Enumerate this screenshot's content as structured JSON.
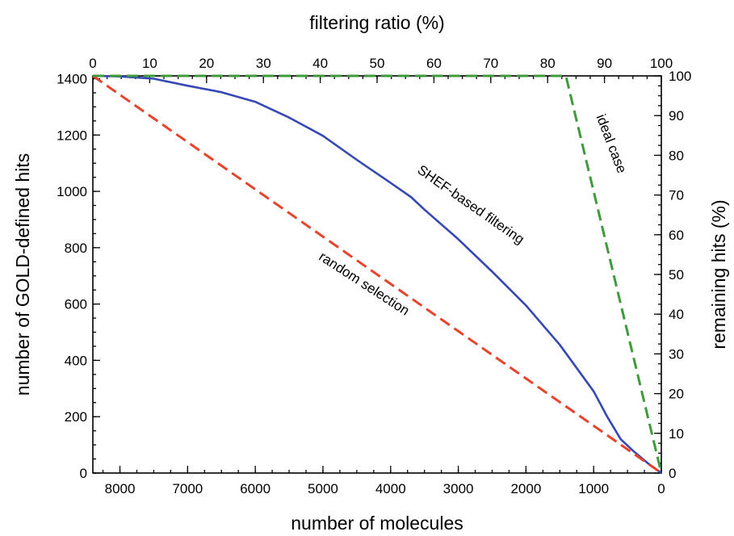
{
  "chart_data": {
    "type": "line",
    "title": "",
    "x_bottom": {
      "label": "number of molecules",
      "range": [
        8400,
        0
      ],
      "ticks": [
        8000,
        7000,
        6000,
        5000,
        4000,
        3000,
        2000,
        1000,
        0
      ]
    },
    "x_top": {
      "label": "filtering ratio (%)",
      "range": [
        0,
        100
      ],
      "ticks": [
        0,
        10,
        20,
        30,
        40,
        50,
        60,
        70,
        80,
        90,
        100
      ]
    },
    "y_left": {
      "label": "number of GOLD-defined hits",
      "range": [
        0,
        1410
      ],
      "ticks": [
        0,
        200,
        400,
        600,
        800,
        1000,
        1200,
        1400
      ]
    },
    "y_right": {
      "label": "remaining hits (%)",
      "range": [
        0,
        100
      ],
      "ticks": [
        0,
        10,
        20,
        30,
        40,
        50,
        60,
        70,
        80,
        90,
        100
      ]
    },
    "series": [
      {
        "name": "SHEF-based filtering",
        "color": "#3548b5",
        "style": "solid",
        "x": [
          8400,
          8000,
          7500,
          7000,
          6500,
          6000,
          5500,
          5000,
          4500,
          4000,
          3700,
          3500,
          3000,
          2500,
          2000,
          1500,
          1000,
          800,
          600,
          400,
          200,
          100,
          0
        ],
        "y": [
          1410,
          1408,
          1400,
          1375,
          1352,
          1318,
          1262,
          1197,
          1112,
          1030,
          980,
          935,
          830,
          715,
          595,
          455,
          290,
          200,
          120,
          75,
          35,
          18,
          0
        ]
      },
      {
        "name": "random selection",
        "color": "#e8432b",
        "style": "dashed",
        "x": [
          8400,
          0
        ],
        "y": [
          1410,
          0
        ]
      },
      {
        "name": "ideal case",
        "color": "#3e9a3a",
        "style": "dashed",
        "x": [
          8400,
          1410,
          0
        ],
        "y": [
          1410,
          1410,
          0
        ]
      }
    ],
    "annotations": [
      {
        "text": "SHEF-based filtering",
        "series": "SHEF-based filtering"
      },
      {
        "text": "random selection",
        "series": "random selection"
      },
      {
        "text": "ideal case",
        "series": "ideal case"
      }
    ],
    "grid": false,
    "legend": "none"
  }
}
